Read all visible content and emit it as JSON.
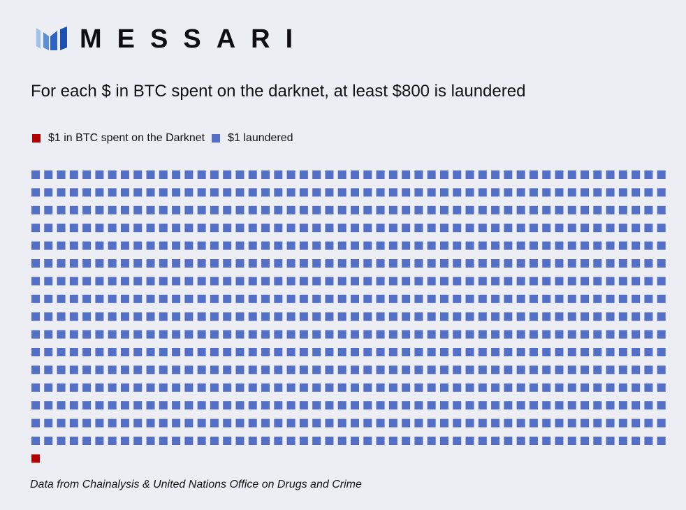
{
  "brand": {
    "name": "MESSARI",
    "mark_colors": [
      "#9ec3ea",
      "#5b8fd6",
      "#2f63c3",
      "#1d4fb0"
    ]
  },
  "title": "For each $ in BTC spent on the darknet, at least $800 is laundered",
  "legend": [
    {
      "label": "$1 in BTC spent on the Darknet",
      "color": "#b00000"
    },
    {
      "label": "$1 laundered",
      "color": "#5470c6"
    }
  ],
  "source": "Data from Chainalysis & United Nations Office on Drugs and Crime",
  "chart_data": {
    "type": "waffle",
    "title": "For each $ in BTC spent on the darknet, at least $800 is laundered",
    "series": [
      {
        "name": "$1 in BTC spent on the Darknet",
        "value": 1,
        "color": "#b00000"
      },
      {
        "name": "$1 laundered",
        "value": 800,
        "color": "#5470c6"
      }
    ],
    "columns": 50,
    "order": [
      "$1 laundered",
      "$1 in BTC spent on the Darknet"
    ]
  }
}
